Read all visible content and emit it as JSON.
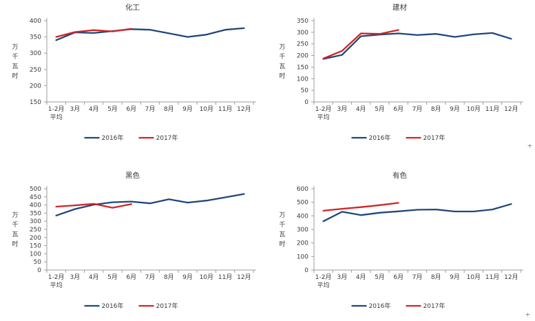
{
  "page": {
    "background": "#ffffff",
    "text_color": "#3a3a3a",
    "axis_color": "#9b9b9b"
  },
  "artifacts": {
    "plus": "+"
  },
  "chart_data": [
    {
      "type": "line",
      "title": "化工",
      "ylabel": "万千瓦时",
      "categories": [
        [
          "1-2月",
          "平均"
        ],
        [
          "3月"
        ],
        [
          "4月"
        ],
        [
          "5月"
        ],
        [
          "6月"
        ],
        [
          "7月"
        ],
        [
          "8月"
        ],
        [
          "9月"
        ],
        [
          "10月"
        ],
        [
          "11月"
        ],
        [
          "12月"
        ]
      ],
      "ylim": [
        150,
        400
      ],
      "ytick_step": 50,
      "grid": false,
      "legend_position": "bottom",
      "series": [
        {
          "name": "2016年",
          "color": "#1F477C",
          "values": [
            340,
            364,
            362,
            368,
            374,
            372,
            361,
            350,
            357,
            372,
            377
          ]
        },
        {
          "name": "2017年",
          "color": "#D02427",
          "values": [
            350,
            365,
            371,
            367,
            375,
            null,
            null,
            null,
            null,
            null,
            null
          ]
        }
      ]
    },
    {
      "type": "line",
      "title": "建材",
      "ylabel": "万千瓦时",
      "categories": [
        [
          "1-2月",
          "平均"
        ],
        [
          "3月"
        ],
        [
          "4月"
        ],
        [
          "5月"
        ],
        [
          "6月"
        ],
        [
          "7月"
        ],
        [
          "8月"
        ],
        [
          "9月"
        ],
        [
          "10月"
        ],
        [
          "11月"
        ],
        [
          "12月"
        ]
      ],
      "ylim": [
        0,
        350
      ],
      "ytick_step": 50,
      "grid": false,
      "legend_position": "bottom",
      "series": [
        {
          "name": "2016年",
          "color": "#1F477C",
          "values": [
            185,
            203,
            283,
            290,
            295,
            288,
            293,
            280,
            291,
            297,
            272
          ]
        },
        {
          "name": "2017年",
          "color": "#D02427",
          "values": [
            187,
            220,
            295,
            293,
            310,
            null,
            null,
            null,
            null,
            null,
            null
          ]
        }
      ]
    },
    {
      "type": "line",
      "title": "黑色",
      "ylabel": "万千瓦时",
      "categories": [
        [
          "1-2月",
          "平均"
        ],
        [
          "3月"
        ],
        [
          "4月"
        ],
        [
          "5月"
        ],
        [
          "6月"
        ],
        [
          "7月"
        ],
        [
          "8月"
        ],
        [
          "9月"
        ],
        [
          "10月"
        ],
        [
          "11月"
        ],
        [
          "12月"
        ]
      ],
      "ylim": [
        0,
        500
      ],
      "ytick_step": 50,
      "grid": false,
      "legend_position": "bottom",
      "series": [
        {
          "name": "2016年",
          "color": "#1F477C",
          "values": [
            335,
            375,
            402,
            417,
            421,
            410,
            435,
            415,
            427,
            447,
            468
          ]
        },
        {
          "name": "2017年",
          "color": "#D02427",
          "values": [
            390,
            398,
            407,
            383,
            406,
            null,
            null,
            null,
            null,
            null,
            null
          ]
        }
      ]
    },
    {
      "type": "line",
      "title": "有色",
      "ylabel": "万千瓦时",
      "categories": [
        [
          "1-2月",
          "平均"
        ],
        [
          "3月"
        ],
        [
          "4月"
        ],
        [
          "5月"
        ],
        [
          "6月"
        ],
        [
          "7月"
        ],
        [
          "8月"
        ],
        [
          "9月"
        ],
        [
          "10月"
        ],
        [
          "11月"
        ],
        [
          "12月"
        ]
      ],
      "ylim": [
        0,
        600
      ],
      "ytick_step": 100,
      "grid": false,
      "legend_position": "bottom",
      "series": [
        {
          "name": "2016年",
          "color": "#1F477C",
          "values": [
            360,
            430,
            405,
            423,
            433,
            445,
            447,
            432,
            432,
            447,
            487
          ]
        },
        {
          "name": "2017年",
          "color": "#D02427",
          "values": [
            438,
            452,
            464,
            479,
            496,
            null,
            null,
            null,
            null,
            null,
            null
          ]
        }
      ]
    }
  ]
}
